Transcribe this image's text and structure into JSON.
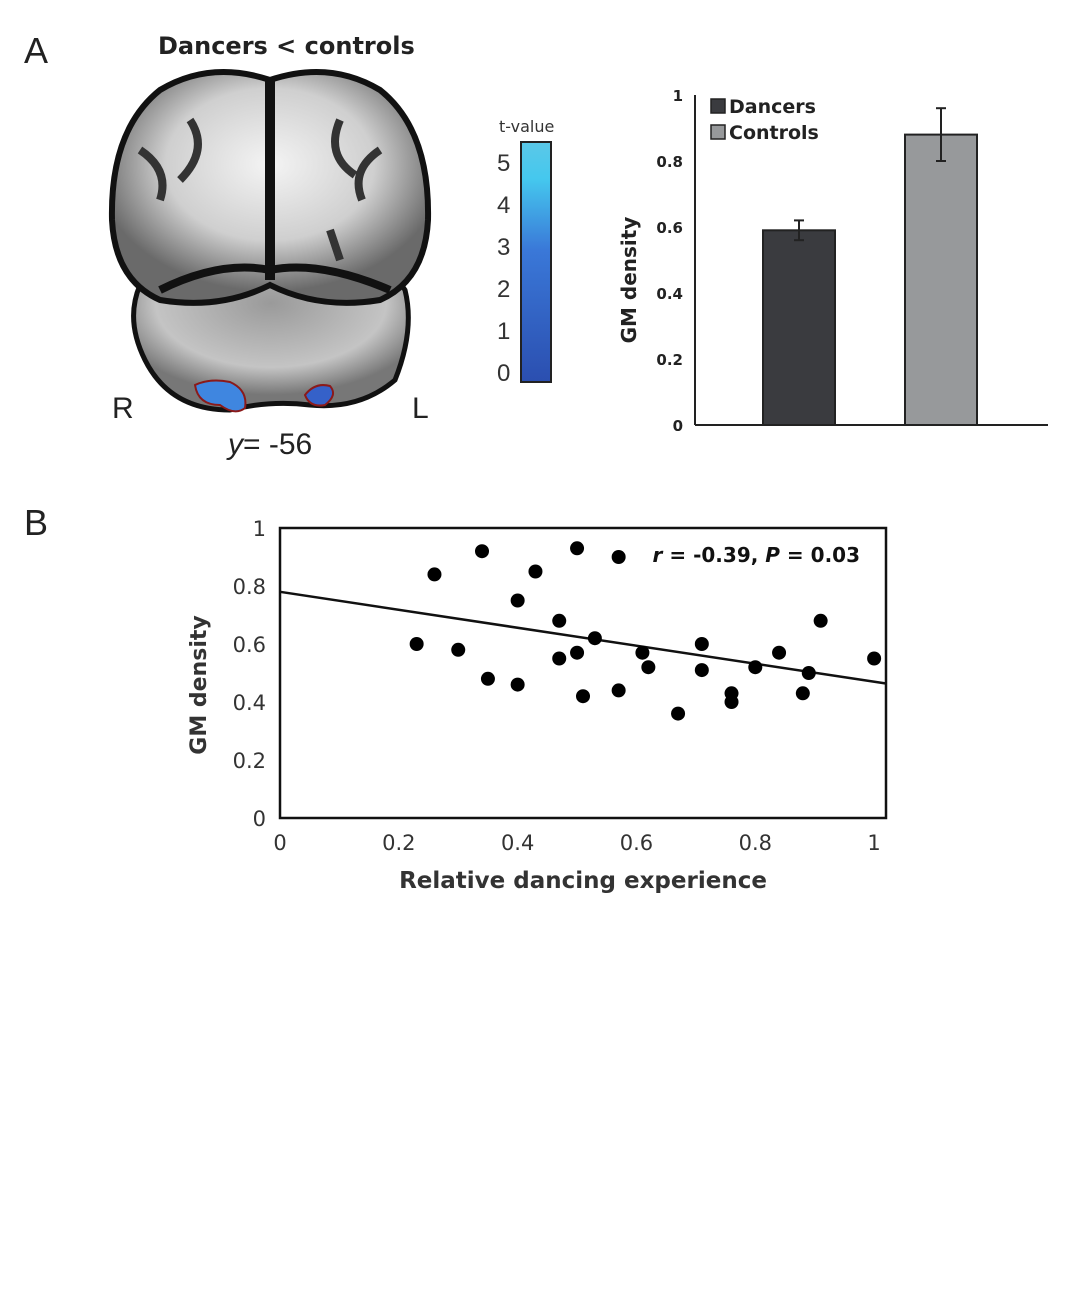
{
  "panels": {
    "a": "A",
    "b": "B"
  },
  "brain": {
    "title": "Dancers < controls",
    "right_label": "R",
    "left_label": "L",
    "slice_label_var": "y",
    "slice_label_value": "= -56",
    "colorbar": {
      "title": "t-value",
      "ticks": [
        "0",
        "1",
        "2",
        "3",
        "4",
        "5"
      ],
      "color_low": "#2b4fb0",
      "color_high": "#45c8ee"
    },
    "cluster_color": "#3f86e0",
    "cluster_outline": "#8b1a1a"
  },
  "chart_data": [
    {
      "type": "bar",
      "categories": [
        "Dancers",
        "Controls"
      ],
      "values": [
        0.59,
        0.88
      ],
      "errors": [
        0.03,
        0.08
      ],
      "colors": [
        "#3a3b3f",
        "#97999b"
      ],
      "legend": [
        "Dancers",
        "Controls"
      ],
      "legend_position": "top-left",
      "ylabel": "GM density",
      "xlabel": "",
      "ylim": [
        0,
        1
      ],
      "yticks": [
        "0",
        "0.2",
        "0.4",
        "0.6",
        "0.8",
        "1"
      ]
    },
    {
      "type": "scatter",
      "xlabel": "Relative dancing experience",
      "ylabel": "GM density",
      "xlim": [
        0,
        1.02
      ],
      "ylim": [
        0,
        1
      ],
      "xticks": [
        "0",
        "0.2",
        "0.4",
        "0.6",
        "0.8",
        "1"
      ],
      "yticks": [
        "0",
        "0.2",
        "0.4",
        "0.6",
        "0.8",
        "1"
      ],
      "annotation": {
        "r_label": "r",
        "r_text": " = -0.39, ",
        "p_label": "P",
        "p_text": " = 0.03"
      },
      "points": [
        [
          0.23,
          0.6
        ],
        [
          0.26,
          0.84
        ],
        [
          0.3,
          0.58
        ],
        [
          0.34,
          0.92
        ],
        [
          0.35,
          0.48
        ],
        [
          0.4,
          0.75
        ],
        [
          0.4,
          0.46
        ],
        [
          0.43,
          0.85
        ],
        [
          0.47,
          0.68
        ],
        [
          0.47,
          0.55
        ],
        [
          0.5,
          0.93
        ],
        [
          0.5,
          0.57
        ],
        [
          0.51,
          0.42
        ],
        [
          0.53,
          0.62
        ],
        [
          0.57,
          0.9
        ],
        [
          0.57,
          0.44
        ],
        [
          0.61,
          0.57
        ],
        [
          0.62,
          0.52
        ],
        [
          0.67,
          0.36
        ],
        [
          0.71,
          0.6
        ],
        [
          0.71,
          0.51
        ],
        [
          0.76,
          0.43
        ],
        [
          0.76,
          0.4
        ],
        [
          0.8,
          0.52
        ],
        [
          0.84,
          0.57
        ],
        [
          0.88,
          0.43
        ],
        [
          0.89,
          0.5
        ],
        [
          0.91,
          0.68
        ],
        [
          1.0,
          0.55
        ]
      ],
      "fit_line": {
        "intercept": 0.78,
        "slope": -0.31
      }
    }
  ]
}
